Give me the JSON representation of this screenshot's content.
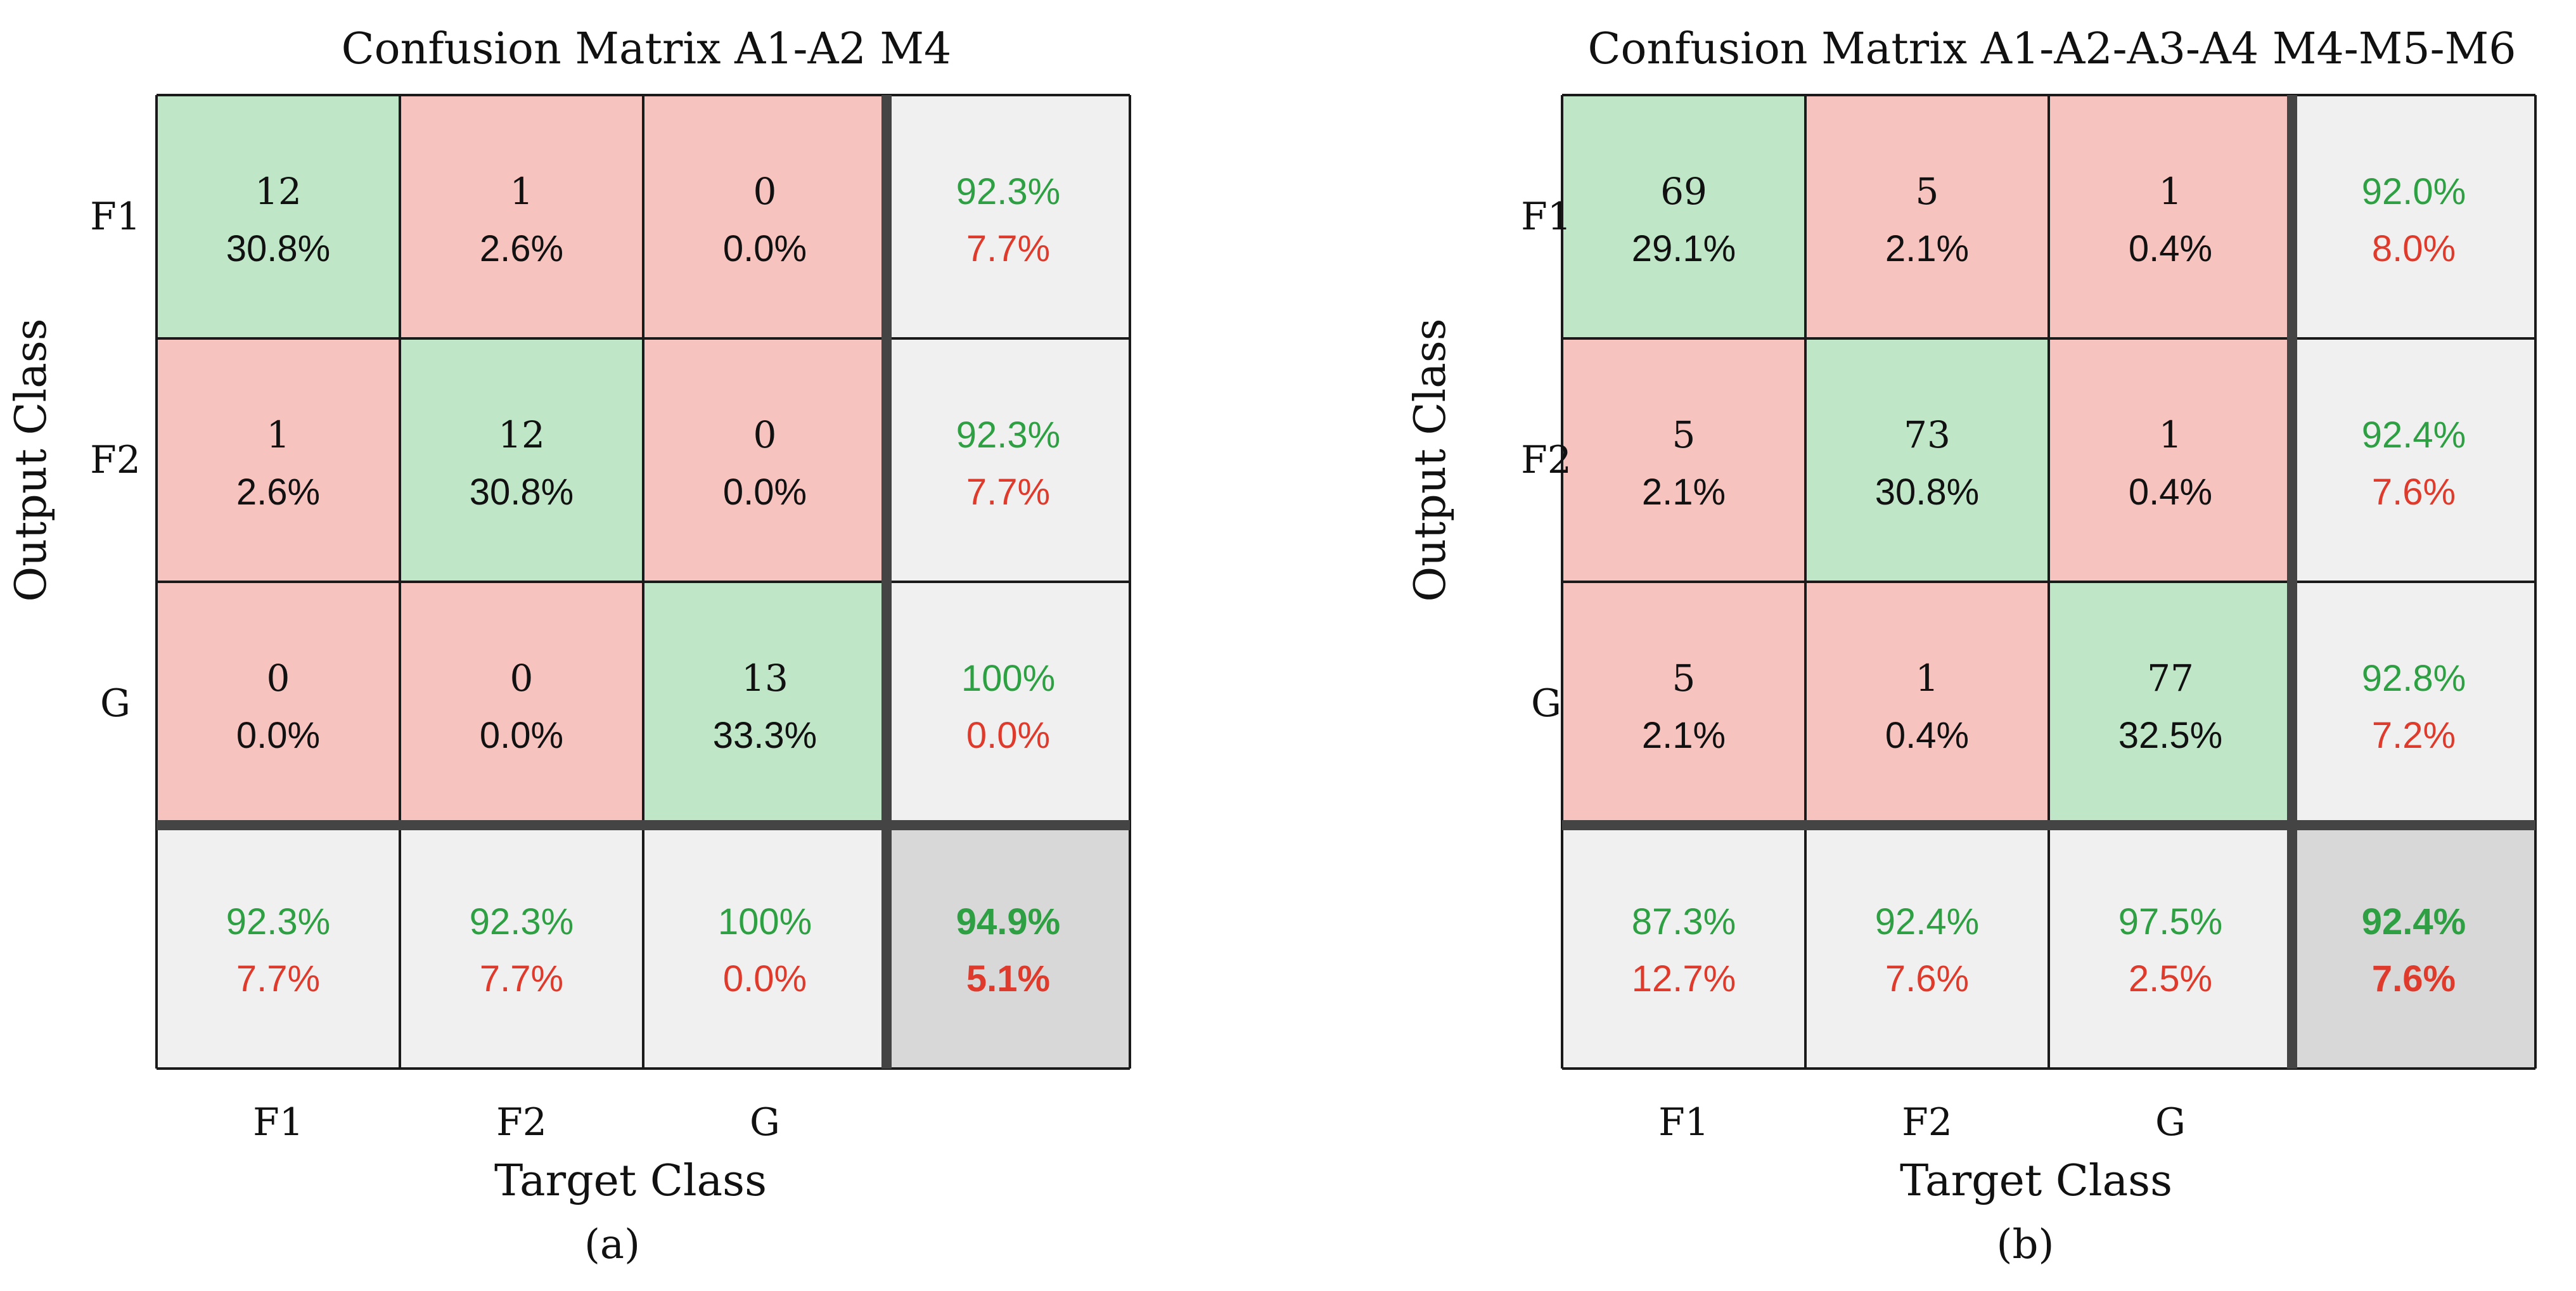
{
  "colors": {
    "correct": "#bfe6c7",
    "incorrect": "#f7c3bf",
    "summary": "#f0f0f0",
    "overall": "#d8d8d8",
    "green_text": "#2ea043",
    "red_text": "#de3b2c",
    "grid": "#1a1a1a",
    "separator": "#444444"
  },
  "chart_data": [
    {
      "type": "heatmap",
      "title": "Confusion Matrix A1-A2 M4",
      "xlabel": "Target Class",
      "ylabel": "Output Class",
      "caption": "(a)",
      "classes": [
        "F1",
        "F2",
        "G"
      ],
      "counts": [
        [
          12,
          1,
          0
        ],
        [
          1,
          12,
          0
        ],
        [
          0,
          0,
          13
        ]
      ],
      "percents": [
        [
          "30.8%",
          "2.6%",
          "0.0%"
        ],
        [
          "2.6%",
          "30.8%",
          "0.0%"
        ],
        [
          "0.0%",
          "0.0%",
          "33.3%"
        ]
      ],
      "row_summary": [
        [
          "92.3%",
          "7.7%"
        ],
        [
          "92.3%",
          "7.7%"
        ],
        [
          "100%",
          "0.0%"
        ]
      ],
      "col_summary": [
        [
          "92.3%",
          "7.7%"
        ],
        [
          "92.3%",
          "7.7%"
        ],
        [
          "100%",
          "0.0%"
        ]
      ],
      "overall": [
        "94.9%",
        "5.1%"
      ]
    },
    {
      "type": "heatmap",
      "title": "Confusion Matrix A1-A2-A3-A4 M4-M5-M6",
      "xlabel": "Target Class",
      "ylabel": "Output Class",
      "caption": "(b)",
      "classes": [
        "F1",
        "F2",
        "G"
      ],
      "counts": [
        [
          69,
          5,
          1
        ],
        [
          5,
          73,
          1
        ],
        [
          5,
          1,
          77
        ]
      ],
      "percents": [
        [
          "29.1%",
          "2.1%",
          "0.4%"
        ],
        [
          "2.1%",
          "30.8%",
          "0.4%"
        ],
        [
          "2.1%",
          "0.4%",
          "32.5%"
        ]
      ],
      "row_summary": [
        [
          "92.0%",
          "8.0%"
        ],
        [
          "92.4%",
          "7.6%"
        ],
        [
          "92.8%",
          "7.2%"
        ]
      ],
      "col_summary": [
        [
          "87.3%",
          "12.7%"
        ],
        [
          "92.4%",
          "7.6%"
        ],
        [
          "97.5%",
          "2.5%"
        ]
      ],
      "overall": [
        "92.4%",
        "7.6%"
      ]
    }
  ]
}
